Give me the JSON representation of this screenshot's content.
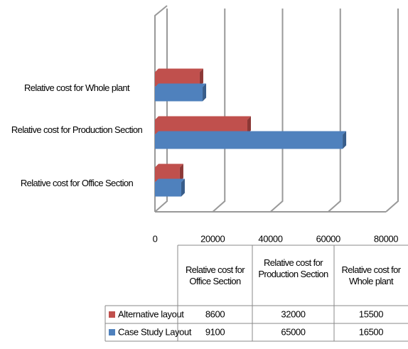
{
  "chart_data": {
    "type": "bar",
    "orientation": "horizontal",
    "categories": [
      "Relative cost for Office Section",
      "Relative cost for Production Section",
      "Relative cost for Whole plant"
    ],
    "series": [
      {
        "name": "Alternative layout",
        "color": "#c0504d",
        "values": [
          8600,
          32000,
          15500
        ]
      },
      {
        "name": "Case Study Layout",
        "color": "#4f81bd",
        "values": [
          9100,
          65000,
          16500
        ]
      }
    ],
    "xlim": [
      0,
      80000
    ],
    "xticks": [
      0,
      20000,
      40000,
      60000,
      80000
    ],
    "grid": true,
    "data_table": true
  }
}
